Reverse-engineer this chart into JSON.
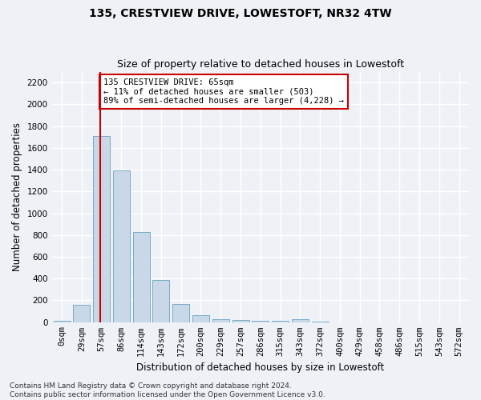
{
  "title": "135, CRESTVIEW DRIVE, LOWESTOFT, NR32 4TW",
  "subtitle": "Size of property relative to detached houses in Lowestoft",
  "xlabel": "Distribution of detached houses by size in Lowestoft",
  "ylabel": "Number of detached properties",
  "bar_labels": [
    "0sqm",
    "29sqm",
    "57sqm",
    "86sqm",
    "114sqm",
    "143sqm",
    "172sqm",
    "200sqm",
    "229sqm",
    "257sqm",
    "286sqm",
    "315sqm",
    "343sqm",
    "372sqm",
    "400sqm",
    "429sqm",
    "458sqm",
    "486sqm",
    "515sqm",
    "543sqm",
    "572sqm"
  ],
  "bar_values": [
    15,
    160,
    1710,
    1395,
    830,
    390,
    165,
    60,
    30,
    20,
    15,
    15,
    25,
    5,
    0,
    0,
    0,
    0,
    0,
    0,
    0
  ],
  "bar_color": "#c8d8e8",
  "bar_edge_color": "#7aaac8",
  "vline_x": 1.95,
  "vline_color": "#cc0000",
  "annotation_text": "135 CRESTVIEW DRIVE: 65sqm\n← 11% of detached houses are smaller (503)\n89% of semi-detached houses are larger (4,228) →",
  "annotation_box_color": "#ffffff",
  "annotation_box_edge": "#cc0000",
  "ylim": [
    0,
    2300
  ],
  "yticks": [
    0,
    200,
    400,
    600,
    800,
    1000,
    1200,
    1400,
    1600,
    1800,
    2000,
    2200
  ],
  "background_color": "#eef2f7",
  "grid_color": "#ffffff",
  "footer": "Contains HM Land Registry data © Crown copyright and database right 2024.\nContains public sector information licensed under the Open Government Licence v3.0.",
  "title_fontsize": 10,
  "subtitle_fontsize": 9,
  "xlabel_fontsize": 8.5,
  "ylabel_fontsize": 8.5,
  "tick_fontsize": 7.5,
  "annotation_fontsize": 7.5,
  "footer_fontsize": 6.5
}
